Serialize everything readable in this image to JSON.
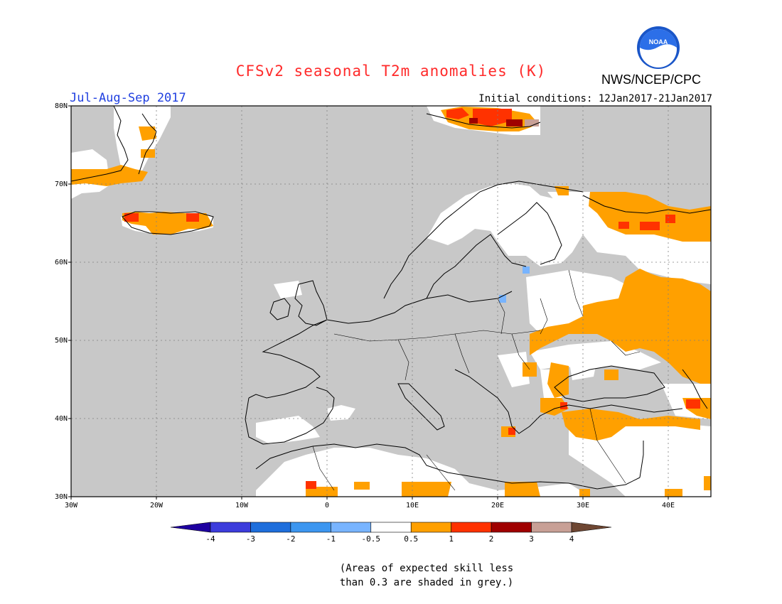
{
  "header": {
    "title": "CFSv2 seasonal T2m anomalies (K)",
    "period": "Jul-Aug-Sep 2017",
    "initial_conditions": "Initial conditions: 12Jan2017-21Jan2017",
    "agency": "NWS/NCEP/CPC",
    "logo_text": "NOAA"
  },
  "map": {
    "lon_ticks": [
      "30W",
      "20W",
      "10W",
      "0",
      "10E",
      "20E",
      "30E",
      "40E"
    ],
    "lat_ticks": [
      "80N",
      "70N",
      "60N",
      "50N",
      "40N",
      "30N"
    ],
    "lon_range": [
      -30,
      45
    ],
    "lat_range": [
      30,
      80
    ],
    "colors": {
      "no_skill_grey": "#c8c8c8",
      "neutral_white": "#ffffff",
      "cat_0_5_1": "#ffa000",
      "cat_1_2": "#ff3200",
      "cat_2_3": "#a00000",
      "cat_3_4": "#c8a096",
      "cat_minus_0_5_minus_1": "#78b4ff"
    }
  },
  "colorbar": {
    "labels": [
      "-4",
      "-3",
      "-2",
      "-1",
      "-0.5",
      "0.5",
      "1",
      "2",
      "3",
      "4"
    ],
    "colors": [
      "#1e00a0",
      "#3c3cdc",
      "#1e6edc",
      "#3c96f0",
      "#78b4ff",
      "#ffffff",
      "#ffa000",
      "#ff3200",
      "#a00000",
      "#c8a096",
      "#6e4632"
    ]
  },
  "footnote": {
    "line1": "(Areas of expected skill less",
    "line2": "than 0.3 are shaded in grey.)"
  }
}
